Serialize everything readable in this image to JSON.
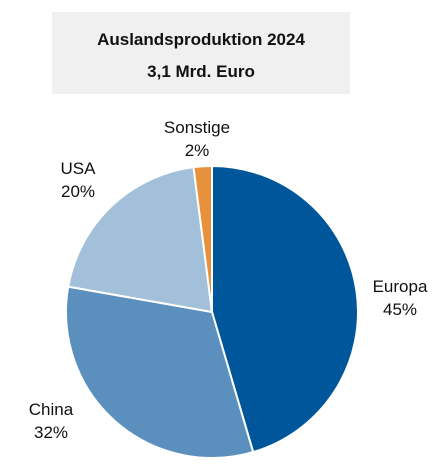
{
  "chart_data": {
    "type": "pie",
    "title": "Auslandsproduktion 2024",
    "subtitle": "3,1 Mrd. Euro",
    "categories": [
      "Europa",
      "China",
      "USA",
      "Sonstige"
    ],
    "values": [
      45,
      32,
      20,
      2
    ],
    "value_labels": [
      "45%",
      "32%",
      "20%",
      "2%"
    ],
    "colors": [
      "#00569b",
      "#5b8fbd",
      "#a2c0da",
      "#e8913d"
    ],
    "start_angle": "12 o'clock",
    "direction": "clockwise",
    "legend": "none"
  }
}
